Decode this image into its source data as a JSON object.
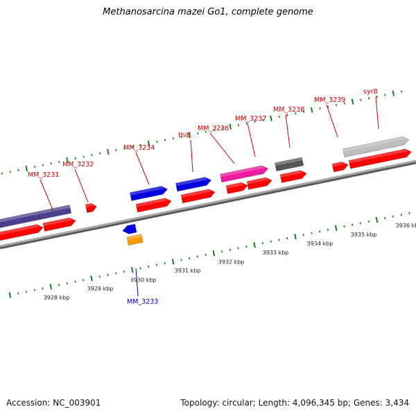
{
  "title": "Methanosarcina mazei Go1, complete genome",
  "footer": {
    "accession": "Accession: NC_003901",
    "summary": "Topology: circular; Length: 4,096,345 bp; Genes: 3,434"
  },
  "colors": {
    "backbone": "#8c8c8c",
    "cds": "#ff0000",
    "tick": "#1a7a1a",
    "label_top": "#cc0000",
    "label_bottom": "#0000cc"
  },
  "kbp_labels": [
    "3928 kbp",
    "3929 kbp",
    "3930 kbp",
    "3931 kbp",
    "3932 kbp",
    "3933 kbp",
    "3934 kbp",
    "3935 kbp",
    "3936 kbp"
  ],
  "gene_labels": [
    {
      "name": "MM_3231",
      "color": "#cc0000"
    },
    {
      "name": "MM_3232",
      "color": "#cc0000"
    },
    {
      "name": "MM_3234",
      "color": "#cc0000"
    },
    {
      "name": "thiE",
      "color": "#cc0000"
    },
    {
      "name": "MM_3236",
      "color": "#cc0000"
    },
    {
      "name": "MM_3237",
      "color": "#cc0000"
    },
    {
      "name": "MM_3238",
      "color": "#cc0000"
    },
    {
      "name": "MM_3239",
      "color": "#cc0000"
    },
    {
      "name": "syrB",
      "color": "#cc0000"
    },
    {
      "name": "MM_3233",
      "color": "#0000cc"
    }
  ],
  "features": [
    {
      "id": "f-purple-1",
      "color": "#4a3f8c"
    },
    {
      "id": "f-purple-2",
      "color": "#4a3f8c"
    },
    {
      "id": "f-blue-1",
      "color": "#0000e0"
    },
    {
      "id": "f-blue-2",
      "color": "#0000e0"
    },
    {
      "id": "f-magenta",
      "color": "#ee1aa0"
    },
    {
      "id": "f-gray-dark",
      "color": "#555555"
    },
    {
      "id": "f-gray-light",
      "color": "#bdbdbd"
    },
    {
      "id": "f-blue-rev",
      "color": "#0000e0"
    },
    {
      "id": "f-orange",
      "color": "#ff9900"
    }
  ]
}
